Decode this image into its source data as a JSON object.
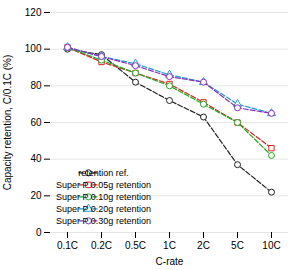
{
  "chart_data": {
    "type": "line",
    "categories": [
      "0.1C",
      "0.2C",
      "0.5C",
      "1C",
      "2C",
      "5C",
      "10C"
    ],
    "series": [
      {
        "name": "retention ref.",
        "color": "#222222",
        "marker": "circle",
        "line_style": "dashed",
        "values": [
          100,
          97,
          82,
          72,
          63,
          37,
          22
        ]
      },
      {
        "name": "Super P 0.05g retention",
        "color": "#dd2222",
        "marker": "square",
        "line_style": "dashed",
        "values": [
          101,
          93,
          87,
          81,
          71,
          60,
          46
        ]
      },
      {
        "name": "Super P 0.10g retention",
        "color": "#22aa22",
        "marker": "circle",
        "line_style": "dashed",
        "values": [
          101,
          94,
          87,
          80,
          70,
          60,
          42
        ]
      },
      {
        "name": "Super P 0.20g retention",
        "color": "#2299cc",
        "marker": "triangle",
        "line_style": "dashed",
        "values": [
          101,
          96,
          92,
          86,
          82,
          70,
          65
        ]
      },
      {
        "name": "Super P 0.30g retention",
        "color": "#8833bb",
        "marker": "circle",
        "line_style": "dashed",
        "values": [
          101,
          96,
          91,
          85,
          82,
          68,
          65
        ]
      }
    ],
    "xlabel": "C-rate",
    "ylabel": "Capacity retention, C/0.1C (%)",
    "ylim": [
      0,
      120
    ],
    "yticks": [
      0,
      20,
      40,
      60,
      80,
      100,
      120
    ],
    "grid": true,
    "legend": "lower left"
  }
}
